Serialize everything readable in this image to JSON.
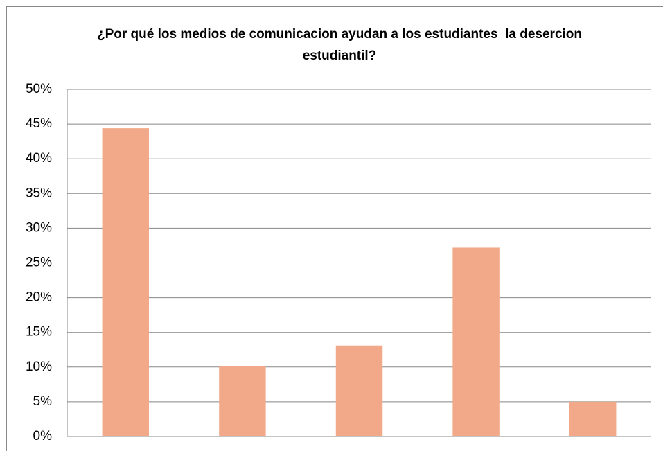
{
  "chart_data": {
    "type": "bar",
    "title": "¿Por qué los medios de comunicacion ayudan a los estudiantes  la desercion estudiantil?",
    "categories": [
      null,
      null,
      null,
      null,
      null
    ],
    "values": [
      44.4,
      10.1,
      13.1,
      27.2,
      5.0
    ],
    "color": "#f2a98a",
    "ylim": [
      0,
      50
    ],
    "yticks": [
      {
        "value": 0,
        "label": "0%"
      },
      {
        "value": 5,
        "label": "5%"
      },
      {
        "value": 10,
        "label": "10%"
      },
      {
        "value": 15,
        "label": "15%"
      },
      {
        "value": 20,
        "label": "20%"
      },
      {
        "value": 25,
        "label": "25%"
      },
      {
        "value": 30,
        "label": "30%"
      },
      {
        "value": 35,
        "label": "35%"
      },
      {
        "value": 40,
        "label": "40%"
      },
      {
        "value": 45,
        "label": "45%"
      },
      {
        "value": 50,
        "label": "50%"
      }
    ],
    "grid": true
  }
}
